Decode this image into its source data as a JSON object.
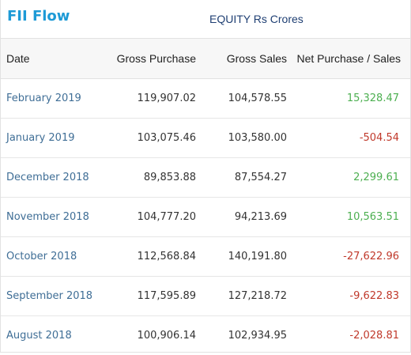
{
  "header": {
    "title": "FII Flow",
    "subtitle": "EQUITY Rs Crores"
  },
  "colors": {
    "title": "#1d9ad6",
    "positive": "#4caf50",
    "negative": "#c0392b",
    "date_text": "#3f6e96"
  },
  "table": {
    "columns": [
      "Date",
      "Gross Purchase",
      "Gross Sales",
      "Net Purchase / Sales"
    ],
    "rows": [
      {
        "date": "February 2019",
        "gross_purchase": "119,907.02",
        "gross_sales": "104,578.55",
        "net": "15,328.47",
        "sign": "positive"
      },
      {
        "date": "January 2019",
        "gross_purchase": "103,075.46",
        "gross_sales": "103,580.00",
        "net": "-504.54",
        "sign": "negative"
      },
      {
        "date": "December 2018",
        "gross_purchase": "89,853.88",
        "gross_sales": "87,554.27",
        "net": "2,299.61",
        "sign": "positive"
      },
      {
        "date": "November 2018",
        "gross_purchase": "104,777.20",
        "gross_sales": "94,213.69",
        "net": "10,563.51",
        "sign": "positive"
      },
      {
        "date": "October 2018",
        "gross_purchase": "112,568.84",
        "gross_sales": "140,191.80",
        "net": "-27,622.96",
        "sign": "negative"
      },
      {
        "date": "September 2018",
        "gross_purchase": "117,595.89",
        "gross_sales": "127,218.72",
        "net": "-9,622.83",
        "sign": "negative"
      },
      {
        "date": "August 2018",
        "gross_purchase": "100,906.14",
        "gross_sales": "102,934.95",
        "net": "-2,028.81",
        "sign": "negative"
      }
    ]
  }
}
